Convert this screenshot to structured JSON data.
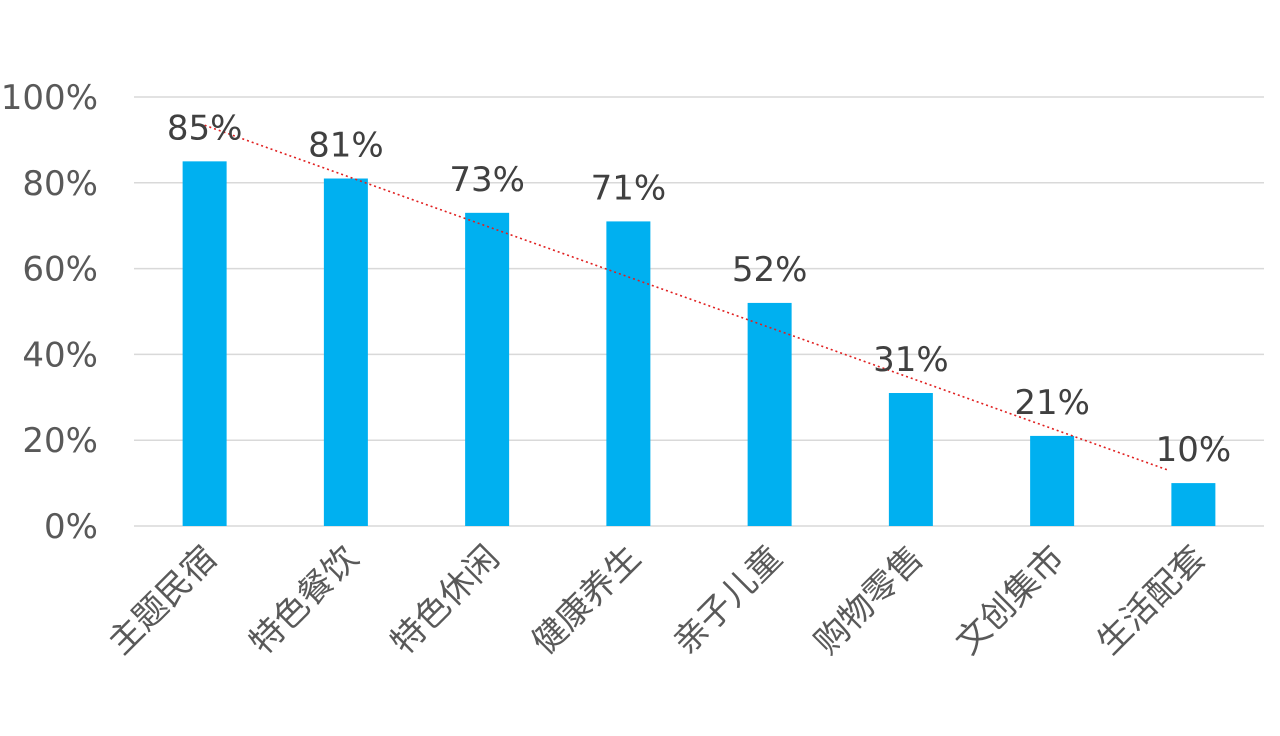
{
  "chart_data": {
    "type": "bar",
    "categories": [
      "主题民宿",
      "特色餐饮",
      "特色休闲",
      "健康养生",
      "亲子儿童",
      "购物零售",
      "文创集市",
      "生活配套"
    ],
    "values": [
      85,
      81,
      73,
      71,
      52,
      31,
      21,
      10
    ],
    "data_labels": [
      "85%",
      "81%",
      "73%",
      "71%",
      "52%",
      "31%",
      "21%",
      "10%"
    ],
    "ylim": [
      0,
      100
    ],
    "yticks": [
      0,
      20,
      40,
      60,
      80,
      100
    ],
    "ytick_labels": [
      "0%",
      "20%",
      "40%",
      "60%",
      "80%",
      "100%"
    ],
    "grid": true,
    "legend": "none",
    "bar_color": "#00b0f0",
    "trendline": {
      "type": "linear",
      "color": "#e02020",
      "style": "dotted"
    }
  }
}
